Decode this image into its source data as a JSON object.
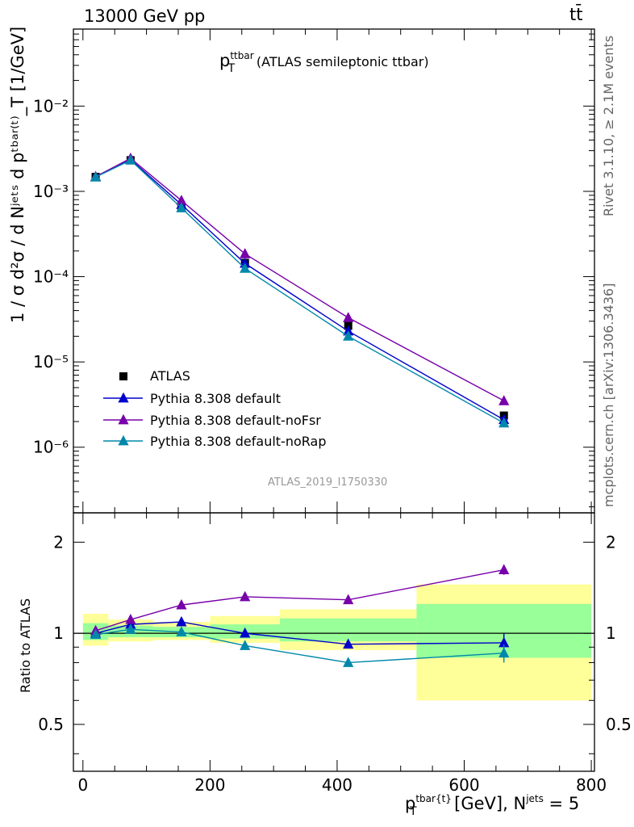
{
  "header": {
    "energy": "13000 GeV pp",
    "process": "tt̄"
  },
  "side_text": {
    "rivet": "Rivet 3.1.10, ≥ 2.1M events",
    "source": "mcplots.cern.ch [arXiv:1306.3436]"
  },
  "chart_data": [
    {
      "type": "line",
      "panel": "main",
      "title_parts": {
        "p": "p",
        "sup": "ttbar",
        "sub": "T",
        "rest": "(ATLAS semileptonic ttbar)"
      },
      "analysis_id": "ATLAS_2019_I1750330",
      "ylabel": "1 / σ d²σ / d Nʲᵉᵗˢ d pᵗᵇᵃʳ⁽ᵗ⁾_T [1/GeV]",
      "y_scale": "log",
      "ylim": [
        1.7e-07,
        0.08
      ],
      "xlim": [
        -15,
        805
      ],
      "y_tick_labels": [
        "10⁻⁶",
        "10⁻⁵",
        "10⁻⁴",
        "10⁻³",
        "10⁻²"
      ],
      "legend_position": "lower-left",
      "x": [
        20,
        75,
        155,
        255,
        417.5,
        662.5
      ],
      "series": [
        {
          "name": "ATLAS",
          "color": "#000000",
          "marker": "square",
          "values": [
            0.00148,
            0.00232,
            0.00066,
            0.000145,
            2.65e-05,
            2.35e-06
          ]
        },
        {
          "name": "Pythia 8.308 default",
          "color": "#0000cc",
          "marker": "triangle",
          "values": [
            0.00148,
            0.00236,
            0.0007,
            0.000143,
            2.3e-05,
            2.1e-06
          ]
        },
        {
          "name": "Pythia 8.308 default-noFsr",
          "color": "#7700aa",
          "marker": "triangle",
          "values": [
            0.00149,
            0.00244,
            0.00078,
            0.000185,
            3.3e-05,
            3.5e-06
          ]
        },
        {
          "name": "Pythia 8.308 default-noRap",
          "color": "#0088aa",
          "marker": "triangle",
          "values": [
            0.00147,
            0.00232,
            0.00064,
            0.000125,
            2e-05,
            1.92e-06
          ]
        }
      ]
    },
    {
      "type": "line",
      "panel": "ratio",
      "ylabel": "Ratio to ATLAS",
      "y_scale": "log",
      "ylim": [
        0.35,
        2.5
      ],
      "xlim": [
        -15,
        805
      ],
      "y_tick_labels": [
        "0.5",
        "1",
        "2"
      ],
      "y_ticks": [
        0.5,
        1,
        2
      ],
      "x_tick_labels": [
        "0",
        "200",
        "400",
        "600",
        "800"
      ],
      "x_ticks": [
        0,
        200,
        400,
        600,
        800
      ],
      "xlabel_parts": {
        "p": "p",
        "sup": "tbar{t}",
        "sub": "T",
        "rest": " [GeV], N",
        "sup2": "jets",
        "eq": " = 5"
      },
      "bands": [
        {
          "x0": 0,
          "x1": 40,
          "stat_lo": 0.95,
          "stat_hi": 1.08,
          "tot_lo": 0.91,
          "tot_hi": 1.16
        },
        {
          "x0": 40,
          "x1": 110,
          "stat_lo": 0.97,
          "stat_hi": 1.06,
          "tot_lo": 0.94,
          "tot_hi": 1.11
        },
        {
          "x0": 110,
          "x1": 200,
          "stat_lo": 0.97,
          "stat_hi": 1.05,
          "tot_lo": 0.95,
          "tot_hi": 1.09
        },
        {
          "x0": 200,
          "x1": 310,
          "stat_lo": 0.96,
          "stat_hi": 1.07,
          "tot_lo": 0.93,
          "tot_hi": 1.14
        },
        {
          "x0": 310,
          "x1": 525,
          "stat_lo": 0.94,
          "stat_hi": 1.12,
          "tot_lo": 0.88,
          "tot_hi": 1.2
        },
        {
          "x0": 525,
          "x1": 800,
          "stat_lo": 0.83,
          "stat_hi": 1.25,
          "tot_lo": 0.6,
          "tot_hi": 1.45
        }
      ],
      "series": [
        {
          "name": "Pythia 8.308 default",
          "color": "#0000cc",
          "values": [
            1.0,
            1.07,
            1.09,
            1.0,
            0.92,
            0.93
          ],
          "errors": [
            0.0,
            0.0,
            0.0,
            0.01,
            0.02,
            0.07
          ]
        },
        {
          "name": "Pythia 8.308 default-noFsr",
          "color": "#7700aa",
          "values": [
            1.02,
            1.11,
            1.24,
            1.32,
            1.29,
            1.62
          ],
          "errors": [
            0.0,
            0.0,
            0.0,
            0.01,
            0.02,
            0.06
          ]
        },
        {
          "name": "Pythia 8.308 default-noRap",
          "color": "#0088aa",
          "values": [
            0.99,
            1.03,
            1.01,
            0.91,
            0.8,
            0.86
          ],
          "errors": [
            0.0,
            0.0,
            0.0,
            0.01,
            0.02,
            0.06
          ]
        }
      ]
    }
  ]
}
